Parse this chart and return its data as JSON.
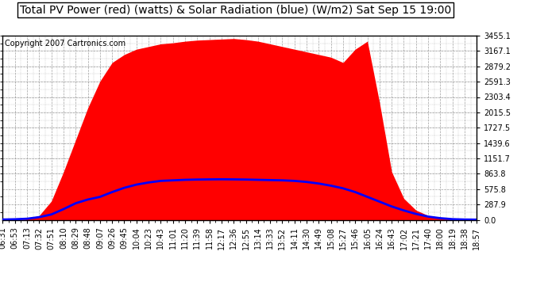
{
  "title": "Total PV Power (red) (watts) & Solar Radiation (blue) (W/m2) Sat Sep 15 19:00",
  "copyright": "Copyright 2007 Cartronics.com",
  "ylim": [
    0.0,
    3455.1
  ],
  "yticks": [
    0.0,
    287.9,
    575.8,
    863.8,
    1151.7,
    1439.6,
    1727.5,
    2015.5,
    2303.4,
    2591.3,
    2879.2,
    3167.1,
    3455.1
  ],
  "x_labels": [
    "06:31",
    "06:53",
    "07:13",
    "07:32",
    "07:51",
    "08:10",
    "08:29",
    "08:48",
    "09:07",
    "09:26",
    "09:45",
    "10:04",
    "10:23",
    "10:43",
    "11:01",
    "11:20",
    "11:39",
    "11:58",
    "12:17",
    "12:36",
    "12:55",
    "13:14",
    "13:33",
    "13:52",
    "14:11",
    "14:30",
    "14:49",
    "15:08",
    "15:27",
    "15:46",
    "16:05",
    "16:24",
    "16:43",
    "17:02",
    "17:21",
    "17:40",
    "18:00",
    "18:19",
    "18:38",
    "18:57"
  ],
  "pv_power": [
    0,
    2,
    15,
    80,
    350,
    900,
    1500,
    2100,
    2600,
    2950,
    3100,
    3200,
    3250,
    3300,
    3320,
    3350,
    3370,
    3380,
    3390,
    3400,
    3380,
    3350,
    3300,
    3250,
    3200,
    3150,
    3100,
    3050,
    2950,
    3200,
    3350,
    2200,
    900,
    400,
    180,
    80,
    30,
    10,
    2,
    0
  ],
  "solar_rad": [
    5,
    10,
    20,
    50,
    100,
    200,
    310,
    380,
    430,
    520,
    600,
    660,
    700,
    730,
    740,
    750,
    755,
    758,
    760,
    758,
    755,
    750,
    745,
    740,
    730,
    710,
    680,
    640,
    590,
    520,
    430,
    340,
    250,
    175,
    110,
    60,
    30,
    12,
    5,
    3
  ],
  "fill_color": "#FF0000",
  "line_color": "#0000FF",
  "bg_color": "#FFFFFF",
  "grid_color": "#888888",
  "title_fontsize": 10,
  "copyright_fontsize": 7,
  "tick_fontsize": 7
}
